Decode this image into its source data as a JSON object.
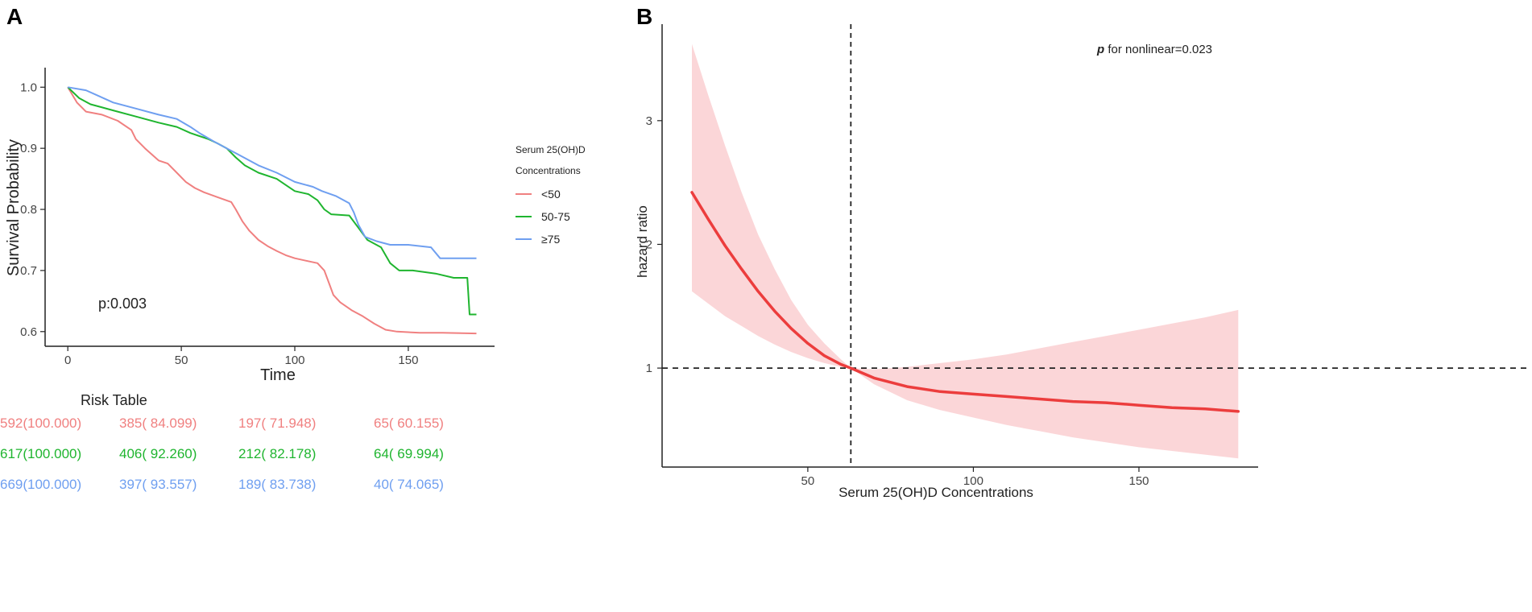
{
  "colors": {
    "lt50": "#f08080",
    "m50_75": "#1fb52f",
    "ge75": "#6f9ff0",
    "hr_line": "#ec3d3d",
    "ci_band": "#fbd2d4",
    "axis": "#222222",
    "ref": "#222222"
  },
  "chart_data": [
    {
      "panel": "A",
      "type": "line",
      "subtype": "kaplan-meier",
      "xlabel": "Time",
      "ylabel": "Survival Probability",
      "xlim": [
        -10,
        188
      ],
      "ylim": [
        0.576,
        1.032
      ],
      "xticks": [
        0,
        50,
        100,
        150
      ],
      "yticks": [
        0.6,
        0.7,
        0.8,
        0.9,
        1.0
      ],
      "ytick_labels": [
        "0.6",
        "0.7",
        "0.8",
        "0.9",
        "1.0"
      ],
      "annotation": "p:0.003",
      "legend": {
        "title": [
          "Serum 25(OH)D",
          "Concentrations"
        ],
        "position": "right"
      },
      "series": [
        {
          "name": "<50",
          "color_key": "lt50",
          "points": [
            [
              0,
              1.0
            ],
            [
              4,
              0.975
            ],
            [
              8,
              0.96
            ],
            [
              15,
              0.955
            ],
            [
              22,
              0.945
            ],
            [
              28,
              0.93
            ],
            [
              30,
              0.915
            ],
            [
              34,
              0.9
            ],
            [
              40,
              0.88
            ],
            [
              44,
              0.875
            ],
            [
              48,
              0.86
            ],
            [
              52,
              0.845
            ],
            [
              56,
              0.835
            ],
            [
              60,
              0.828
            ],
            [
              66,
              0.82
            ],
            [
              72,
              0.812
            ],
            [
              74,
              0.8
            ],
            [
              77,
              0.78
            ],
            [
              80,
              0.765
            ],
            [
              84,
              0.75
            ],
            [
              88,
              0.74
            ],
            [
              92,
              0.732
            ],
            [
              96,
              0.725
            ],
            [
              100,
              0.72
            ],
            [
              105,
              0.716
            ],
            [
              110,
              0.712
            ],
            [
              113,
              0.7
            ],
            [
              115,
              0.68
            ],
            [
              117,
              0.66
            ],
            [
              120,
              0.648
            ],
            [
              125,
              0.635
            ],
            [
              130,
              0.625
            ],
            [
              135,
              0.613
            ],
            [
              140,
              0.603
            ],
            [
              145,
              0.6
            ],
            [
              155,
              0.598
            ],
            [
              165,
              0.598
            ],
            [
              180,
              0.597
            ]
          ]
        },
        {
          "name": "50-75",
          "color_key": "m50_75",
          "points": [
            [
              0,
              1.0
            ],
            [
              5,
              0.982
            ],
            [
              10,
              0.972
            ],
            [
              20,
              0.962
            ],
            [
              30,
              0.952
            ],
            [
              40,
              0.942
            ],
            [
              48,
              0.935
            ],
            [
              54,
              0.925
            ],
            [
              58,
              0.92
            ],
            [
              62,
              0.915
            ],
            [
              66,
              0.908
            ],
            [
              70,
              0.9
            ],
            [
              74,
              0.885
            ],
            [
              78,
              0.872
            ],
            [
              84,
              0.86
            ],
            [
              92,
              0.85
            ],
            [
              96,
              0.84
            ],
            [
              100,
              0.83
            ],
            [
              106,
              0.825
            ],
            [
              110,
              0.815
            ],
            [
              113,
              0.8
            ],
            [
              116,
              0.792
            ],
            [
              124,
              0.79
            ],
            [
              128,
              0.77
            ],
            [
              130,
              0.76
            ],
            [
              132,
              0.75
            ],
            [
              138,
              0.738
            ],
            [
              140,
              0.725
            ],
            [
              142,
              0.712
            ],
            [
              146,
              0.7
            ],
            [
              152,
              0.7
            ],
            [
              162,
              0.695
            ],
            [
              170,
              0.688
            ],
            [
              176,
              0.688
            ],
            [
              177,
              0.628
            ],
            [
              180,
              0.628
            ]
          ]
        },
        {
          "name": "≥75",
          "color_key": "ge75",
          "points": [
            [
              0,
              1.0
            ],
            [
              8,
              0.995
            ],
            [
              14,
              0.985
            ],
            [
              20,
              0.975
            ],
            [
              30,
              0.965
            ],
            [
              40,
              0.955
            ],
            [
              48,
              0.948
            ],
            [
              54,
              0.935
            ],
            [
              58,
              0.925
            ],
            [
              64,
              0.912
            ],
            [
              70,
              0.9
            ],
            [
              76,
              0.888
            ],
            [
              84,
              0.872
            ],
            [
              92,
              0.86
            ],
            [
              100,
              0.845
            ],
            [
              108,
              0.837
            ],
            [
              112,
              0.83
            ],
            [
              118,
              0.822
            ],
            [
              124,
              0.81
            ],
            [
              126,
              0.795
            ],
            [
              128,
              0.775
            ],
            [
              131,
              0.755
            ],
            [
              136,
              0.748
            ],
            [
              142,
              0.742
            ],
            [
              150,
              0.742
            ],
            [
              160,
              0.738
            ],
            [
              164,
              0.72
            ],
            [
              180,
              0.72
            ]
          ]
        }
      ],
      "risk_table": {
        "title": "Risk Table",
        "rows": [
          {
            "group": "<50",
            "color_key": "lt50",
            "cells": [
              "592(100.000)",
              "385( 84.099)",
              "197( 71.948)",
              "65( 60.155)"
            ]
          },
          {
            "group": "50-75",
            "color_key": "m50_75",
            "cells": [
              "617(100.000)",
              "406( 92.260)",
              "212( 82.178)",
              "64( 69.994)"
            ]
          },
          {
            "group": "≥75",
            "color_key": "ge75",
            "cells": [
              "669(100.000)",
              "397( 93.557)",
              "189( 83.738)",
              "40( 74.065)"
            ]
          }
        ]
      }
    },
    {
      "panel": "B",
      "type": "line",
      "subtype": "restricted-cubic-spline",
      "xlabel": "Serum 25(OH)D Concentrations",
      "ylabel": "hazard ratio",
      "xlim": [
        6,
        186
      ],
      "ylim": [
        0.2,
        3.78
      ],
      "xticks": [
        50,
        100,
        150
      ],
      "yticks": [
        1,
        2,
        3
      ],
      "annotation_italic": "p",
      "annotation_rest": " for nonlinear=0.023",
      "ref_x": 63,
      "ref_y": 1,
      "hr": {
        "x": [
          15,
          20,
          25,
          30,
          35,
          40,
          45,
          50,
          55,
          60,
          63,
          70,
          80,
          90,
          100,
          110,
          120,
          130,
          140,
          150,
          160,
          170,
          180
        ],
        "y": [
          2.42,
          2.2,
          1.99,
          1.8,
          1.62,
          1.46,
          1.32,
          1.2,
          1.1,
          1.03,
          1.0,
          0.92,
          0.85,
          0.81,
          0.79,
          0.77,
          0.75,
          0.73,
          0.72,
          0.7,
          0.68,
          0.67,
          0.65
        ],
        "lower": [
          1.62,
          1.52,
          1.42,
          1.34,
          1.26,
          1.19,
          1.13,
          1.08,
          1.04,
          1.01,
          1.0,
          0.87,
          0.74,
          0.66,
          0.6,
          0.54,
          0.49,
          0.44,
          0.4,
          0.36,
          0.33,
          0.3,
          0.27
        ],
        "upper": [
          3.62,
          3.2,
          2.8,
          2.42,
          2.08,
          1.8,
          1.55,
          1.35,
          1.2,
          1.07,
          1.0,
          0.99,
          1.01,
          1.04,
          1.07,
          1.11,
          1.16,
          1.21,
          1.26,
          1.31,
          1.36,
          1.41,
          1.47
        ]
      }
    }
  ]
}
